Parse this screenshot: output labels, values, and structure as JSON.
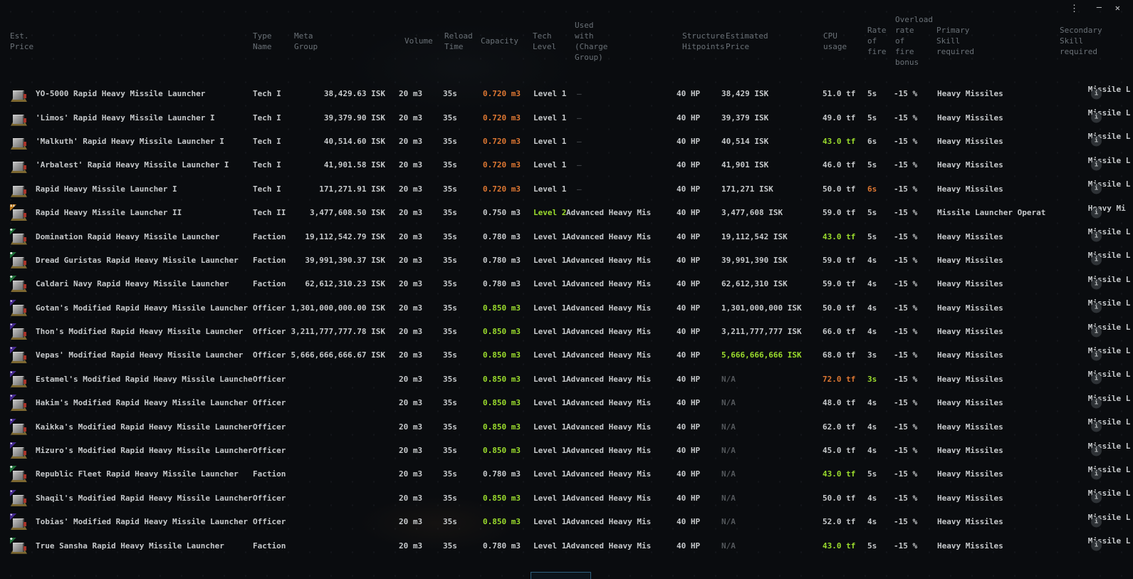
{
  "window": {
    "controls": {
      "menu_icon": "⋮",
      "minimize_icon": "—",
      "close_icon": "✕"
    }
  },
  "colors": {
    "background": "#0a0c0f",
    "text": "#c6c9cb",
    "header_text": "#6a7177",
    "accent_orange": "#dd7732",
    "accent_green": "#9bdc2d",
    "dim_grey": "#54585c",
    "badge_tech2": "#c07b1c",
    "badge_faction": "#20713a",
    "badge_officer": "#44288f"
  },
  "headers": [
    {
      "id": "est-price",
      "label": "Est.\nPrice"
    },
    {
      "id": "type-name",
      "label": "Type\nName"
    },
    {
      "id": "meta-group",
      "label": "Meta\nGroup"
    },
    {
      "id": "volume",
      "label": "Volume"
    },
    {
      "id": "reload-time",
      "label": "Reload\nTime"
    },
    {
      "id": "capacity",
      "label": "Capacity"
    },
    {
      "id": "tech-level",
      "label": "Tech\nLevel"
    },
    {
      "id": "used-with",
      "label": "Used\nwith\n(Charge\nGroup)"
    },
    {
      "id": "structure-hitpoints",
      "label": "Structure\nHitpoints"
    },
    {
      "id": "estimated-price",
      "label": "Estimated\nPrice"
    },
    {
      "id": "cpu-usage",
      "label": "CPU\nusage"
    },
    {
      "id": "rate-of-fire",
      "label": "Rate\nof\nfire"
    },
    {
      "id": "overload-rof-bonus",
      "label": "Overload\nrate\nof\nfire\nbonus"
    },
    {
      "id": "primary-skill",
      "label": "Primary\nSkill\nrequired"
    },
    {
      "id": "secondary-skill",
      "label": "Secondary\nSkill\nrequired"
    }
  ],
  "badge_glyphs": {
    "tech2": "II",
    "faction": "◆",
    "officer": "★"
  },
  "rows": [
    {
      "name": "YO-5000 Rapid Heavy Missile Launcher",
      "badge": "none",
      "meta": "Tech I",
      "price": "38,429.63 ISK",
      "volume": "20 m3",
      "reload": "35s",
      "capacity": "0.720 m3",
      "capacity_color": "orange",
      "tech": "Level 1",
      "tech_color": "",
      "used": "–",
      "structure": "40 HP",
      "est": "38,429 ISK",
      "est_color": "",
      "cpu": "51.0 tf",
      "cpu_color": "",
      "rof": "5s",
      "rof_color": "",
      "overload": "-15 %",
      "primary": "Heavy Missiles",
      "secondary": "Missile L"
    },
    {
      "name": "'Limos' Rapid Heavy Missile Launcher I",
      "badge": "none",
      "meta": "Tech I",
      "price": "39,379.90 ISK",
      "volume": "20 m3",
      "reload": "35s",
      "capacity": "0.720 m3",
      "capacity_color": "orange",
      "tech": "Level 1",
      "tech_color": "",
      "used": "–",
      "structure": "40 HP",
      "est": "39,379 ISK",
      "est_color": "",
      "cpu": "49.0 tf",
      "cpu_color": "",
      "rof": "5s",
      "rof_color": "",
      "overload": "-15 %",
      "primary": "Heavy Missiles",
      "secondary": "Missile L"
    },
    {
      "name": "'Malkuth' Rapid Heavy Missile Launcher I",
      "badge": "none",
      "meta": "Tech I",
      "price": "40,514.60 ISK",
      "volume": "20 m3",
      "reload": "35s",
      "capacity": "0.720 m3",
      "capacity_color": "orange",
      "tech": "Level 1",
      "tech_color": "",
      "used": "–",
      "structure": "40 HP",
      "est": "40,514 ISK",
      "est_color": "",
      "cpu": "43.0 tf",
      "cpu_color": "green",
      "rof": "6s",
      "rof_color": "",
      "overload": "-15 %",
      "primary": "Heavy Missiles",
      "secondary": "Missile L"
    },
    {
      "name": "'Arbalest' Rapid Heavy Missile Launcher I",
      "badge": "none",
      "meta": "Tech I",
      "price": "41,901.58 ISK",
      "volume": "20 m3",
      "reload": "35s",
      "capacity": "0.720 m3",
      "capacity_color": "orange",
      "tech": "Level 1",
      "tech_color": "",
      "used": "–",
      "structure": "40 HP",
      "est": "41,901 ISK",
      "est_color": "",
      "cpu": "46.0 tf",
      "cpu_color": "",
      "rof": "5s",
      "rof_color": "",
      "overload": "-15 %",
      "primary": "Heavy Missiles",
      "secondary": "Missile L"
    },
    {
      "name": "Rapid Heavy Missile Launcher I",
      "badge": "none",
      "meta": "Tech I",
      "price": "171,271.91 ISK",
      "volume": "20 m3",
      "reload": "35s",
      "capacity": "0.720 m3",
      "capacity_color": "orange",
      "tech": "Level 1",
      "tech_color": "",
      "used": "–",
      "structure": "40 HP",
      "est": "171,271 ISK",
      "est_color": "",
      "cpu": "50.0 tf",
      "cpu_color": "",
      "rof": "6s",
      "rof_color": "orange",
      "overload": "-15 %",
      "primary": "Heavy Missiles",
      "secondary": "Missile L"
    },
    {
      "name": "Rapid Heavy Missile Launcher II",
      "badge": "tech2",
      "meta": "Tech II",
      "price": "3,477,608.50 ISK",
      "volume": "20 m3",
      "reload": "35s",
      "capacity": "0.750 m3",
      "capacity_color": "",
      "tech": "Level 2",
      "tech_color": "green",
      "used": "Advanced Heavy Mis",
      "structure": "40 HP",
      "est": "3,477,608 ISK",
      "est_color": "",
      "cpu": "59.0 tf",
      "cpu_color": "",
      "rof": "5s",
      "rof_color": "",
      "overload": "-15 %",
      "primary": "Missile Launcher Operat",
      "secondary": "Heavy Mi"
    },
    {
      "name": "Domination Rapid Heavy Missile Launcher",
      "badge": "faction",
      "meta": "Faction",
      "price": "19,112,542.79 ISK",
      "volume": "20 m3",
      "reload": "35s",
      "capacity": "0.780 m3",
      "capacity_color": "",
      "tech": "Level 1",
      "tech_color": "",
      "used": "Advanced Heavy Mis",
      "structure": "40 HP",
      "est": "19,112,542 ISK",
      "est_color": "",
      "cpu": "43.0 tf",
      "cpu_color": "green",
      "rof": "5s",
      "rof_color": "",
      "overload": "-15 %",
      "primary": "Heavy Missiles",
      "secondary": "Missile L"
    },
    {
      "name": "Dread Guristas Rapid Heavy Missile Launcher",
      "badge": "faction",
      "meta": "Faction",
      "price": "39,991,390.37 ISK",
      "volume": "20 m3",
      "reload": "35s",
      "capacity": "0.780 m3",
      "capacity_color": "",
      "tech": "Level 1",
      "tech_color": "",
      "used": "Advanced Heavy Mis",
      "structure": "40 HP",
      "est": "39,991,390 ISK",
      "est_color": "",
      "cpu": "59.0 tf",
      "cpu_color": "",
      "rof": "4s",
      "rof_color": "",
      "overload": "-15 %",
      "primary": "Heavy Missiles",
      "secondary": "Missile L"
    },
    {
      "name": "Caldari Navy Rapid Heavy Missile Launcher",
      "badge": "faction",
      "meta": "Faction",
      "price": "62,612,310.23 ISK",
      "volume": "20 m3",
      "reload": "35s",
      "capacity": "0.780 m3",
      "capacity_color": "",
      "tech": "Level 1",
      "tech_color": "",
      "used": "Advanced Heavy Mis",
      "structure": "40 HP",
      "est": "62,612,310 ISK",
      "est_color": "",
      "cpu": "59.0 tf",
      "cpu_color": "",
      "rof": "4s",
      "rof_color": "",
      "overload": "-15 %",
      "primary": "Heavy Missiles",
      "secondary": "Missile L"
    },
    {
      "name": "Gotan's Modified Rapid Heavy Missile Launcher",
      "badge": "officer",
      "meta": "Officer",
      "price": "1,301,000,000.00 ISK",
      "volume": "20 m3",
      "reload": "35s",
      "capacity": "0.850 m3",
      "capacity_color": "green",
      "tech": "Level 1",
      "tech_color": "",
      "used": "Advanced Heavy Mis",
      "structure": "40 HP",
      "est": "1,301,000,000 ISK",
      "est_color": "",
      "cpu": "50.0 tf",
      "cpu_color": "",
      "rof": "4s",
      "rof_color": "",
      "overload": "-15 %",
      "primary": "Heavy Missiles",
      "secondary": "Missile L"
    },
    {
      "name": "Thon's Modified Rapid Heavy Missile Launcher",
      "badge": "officer",
      "meta": "Officer",
      "price": "3,211,777,777.78 ISK",
      "volume": "20 m3",
      "reload": "35s",
      "capacity": "0.850 m3",
      "capacity_color": "green",
      "tech": "Level 1",
      "tech_color": "",
      "used": "Advanced Heavy Mis",
      "structure": "40 HP",
      "est": "3,211,777,777 ISK",
      "est_color": "",
      "cpu": "66.0 tf",
      "cpu_color": "",
      "rof": "4s",
      "rof_color": "",
      "overload": "-15 %",
      "primary": "Heavy Missiles",
      "secondary": "Missile L"
    },
    {
      "name": "Vepas' Modified Rapid Heavy Missile Launcher",
      "badge": "officer",
      "meta": "Officer",
      "price": "5,666,666,666.67 ISK",
      "volume": "20 m3",
      "reload": "35s",
      "capacity": "0.850 m3",
      "capacity_color": "green",
      "tech": "Level 1",
      "tech_color": "",
      "used": "Advanced Heavy Mis",
      "structure": "40 HP",
      "est": "5,666,666,666 ISK",
      "est_color": "green",
      "cpu": "68.0 tf",
      "cpu_color": "",
      "rof": "3s",
      "rof_color": "",
      "overload": "-15 %",
      "primary": "Heavy Missiles",
      "secondary": "Missile L"
    },
    {
      "name": "Estamel's Modified Rapid Heavy Missile Launcher",
      "badge": "officer",
      "meta": "Officer",
      "price": "",
      "volume": "20 m3",
      "reload": "35s",
      "capacity": "0.850 m3",
      "capacity_color": "green",
      "tech": "Level 1",
      "tech_color": "",
      "used": "Advanced Heavy Mis",
      "structure": "40 HP",
      "est": "N/A",
      "est_color": "dim",
      "cpu": "72.0 tf",
      "cpu_color": "orange",
      "rof": "3s",
      "rof_color": "green",
      "overload": "-15 %",
      "primary": "Heavy Missiles",
      "secondary": "Missile L"
    },
    {
      "name": "Hakim's Modified Rapid Heavy Missile Launcher",
      "badge": "officer",
      "meta": "Officer",
      "price": "",
      "volume": "20 m3",
      "reload": "35s",
      "capacity": "0.850 m3",
      "capacity_color": "green",
      "tech": "Level 1",
      "tech_color": "",
      "used": "Advanced Heavy Mis",
      "structure": "40 HP",
      "est": "N/A",
      "est_color": "dim",
      "cpu": "48.0 tf",
      "cpu_color": "",
      "rof": "4s",
      "rof_color": "",
      "overload": "-15 %",
      "primary": "Heavy Missiles",
      "secondary": "Missile L"
    },
    {
      "name": "Kaikka's Modified Rapid Heavy Missile Launcher",
      "badge": "officer",
      "meta": "Officer",
      "price": "",
      "volume": "20 m3",
      "reload": "35s",
      "capacity": "0.850 m3",
      "capacity_color": "green",
      "tech": "Level 1",
      "tech_color": "",
      "used": "Advanced Heavy Mis",
      "structure": "40 HP",
      "est": "N/A",
      "est_color": "dim",
      "cpu": "62.0 tf",
      "cpu_color": "",
      "rof": "4s",
      "rof_color": "",
      "overload": "-15 %",
      "primary": "Heavy Missiles",
      "secondary": "Missile L"
    },
    {
      "name": "Mizuro's Modified Rapid Heavy Missile Launcher",
      "badge": "officer",
      "meta": "Officer",
      "price": "",
      "volume": "20 m3",
      "reload": "35s",
      "capacity": "0.850 m3",
      "capacity_color": "green",
      "tech": "Level 1",
      "tech_color": "",
      "used": "Advanced Heavy Mis",
      "structure": "40 HP",
      "est": "N/A",
      "est_color": "dim",
      "cpu": "45.0 tf",
      "cpu_color": "",
      "rof": "4s",
      "rof_color": "",
      "overload": "-15 %",
      "primary": "Heavy Missiles",
      "secondary": "Missile L"
    },
    {
      "name": "Republic Fleet Rapid Heavy Missile Launcher",
      "badge": "faction",
      "meta": "Faction",
      "price": "",
      "volume": "20 m3",
      "reload": "35s",
      "capacity": "0.780 m3",
      "capacity_color": "",
      "tech": "Level 1",
      "tech_color": "",
      "used": "Advanced Heavy Mis",
      "structure": "40 HP",
      "est": "N/A",
      "est_color": "dim",
      "cpu": "43.0 tf",
      "cpu_color": "green",
      "rof": "5s",
      "rof_color": "",
      "overload": "-15 %",
      "primary": "Heavy Missiles",
      "secondary": "Missile L"
    },
    {
      "name": "Shaqil's Modified Rapid Heavy Missile Launcher",
      "badge": "officer",
      "meta": "Officer",
      "price": "",
      "volume": "20 m3",
      "reload": "35s",
      "capacity": "0.850 m3",
      "capacity_color": "green",
      "tech": "Level 1",
      "tech_color": "",
      "used": "Advanced Heavy Mis",
      "structure": "40 HP",
      "est": "N/A",
      "est_color": "dim",
      "cpu": "50.0 tf",
      "cpu_color": "",
      "rof": "4s",
      "rof_color": "",
      "overload": "-15 %",
      "primary": "Heavy Missiles",
      "secondary": "Missile L"
    },
    {
      "name": "Tobias' Modified Rapid Heavy Missile Launcher",
      "badge": "officer",
      "meta": "Officer",
      "price": "",
      "volume": "20 m3",
      "reload": "35s",
      "capacity": "0.850 m3",
      "capacity_color": "green",
      "tech": "Level 1",
      "tech_color": "",
      "used": "Advanced Heavy Mis",
      "structure": "40 HP",
      "est": "N/A",
      "est_color": "dim",
      "cpu": "52.0 tf",
      "cpu_color": "",
      "rof": "4s",
      "rof_color": "",
      "overload": "-15 %",
      "primary": "Heavy Missiles",
      "secondary": "Missile L"
    },
    {
      "name": "True Sansha Rapid Heavy Missile Launcher",
      "badge": "faction",
      "meta": "Faction",
      "price": "",
      "volume": "20 m3",
      "reload": "35s",
      "capacity": "0.780 m3",
      "capacity_color": "",
      "tech": "Level 1",
      "tech_color": "",
      "used": "Advanced Heavy Mis",
      "structure": "40 HP",
      "est": "N/A",
      "est_color": "dim",
      "cpu": "43.0 tf",
      "cpu_color": "green",
      "rof": "5s",
      "rof_color": "",
      "overload": "-15 %",
      "primary": "Heavy Missiles",
      "secondary": "Missile L"
    }
  ]
}
